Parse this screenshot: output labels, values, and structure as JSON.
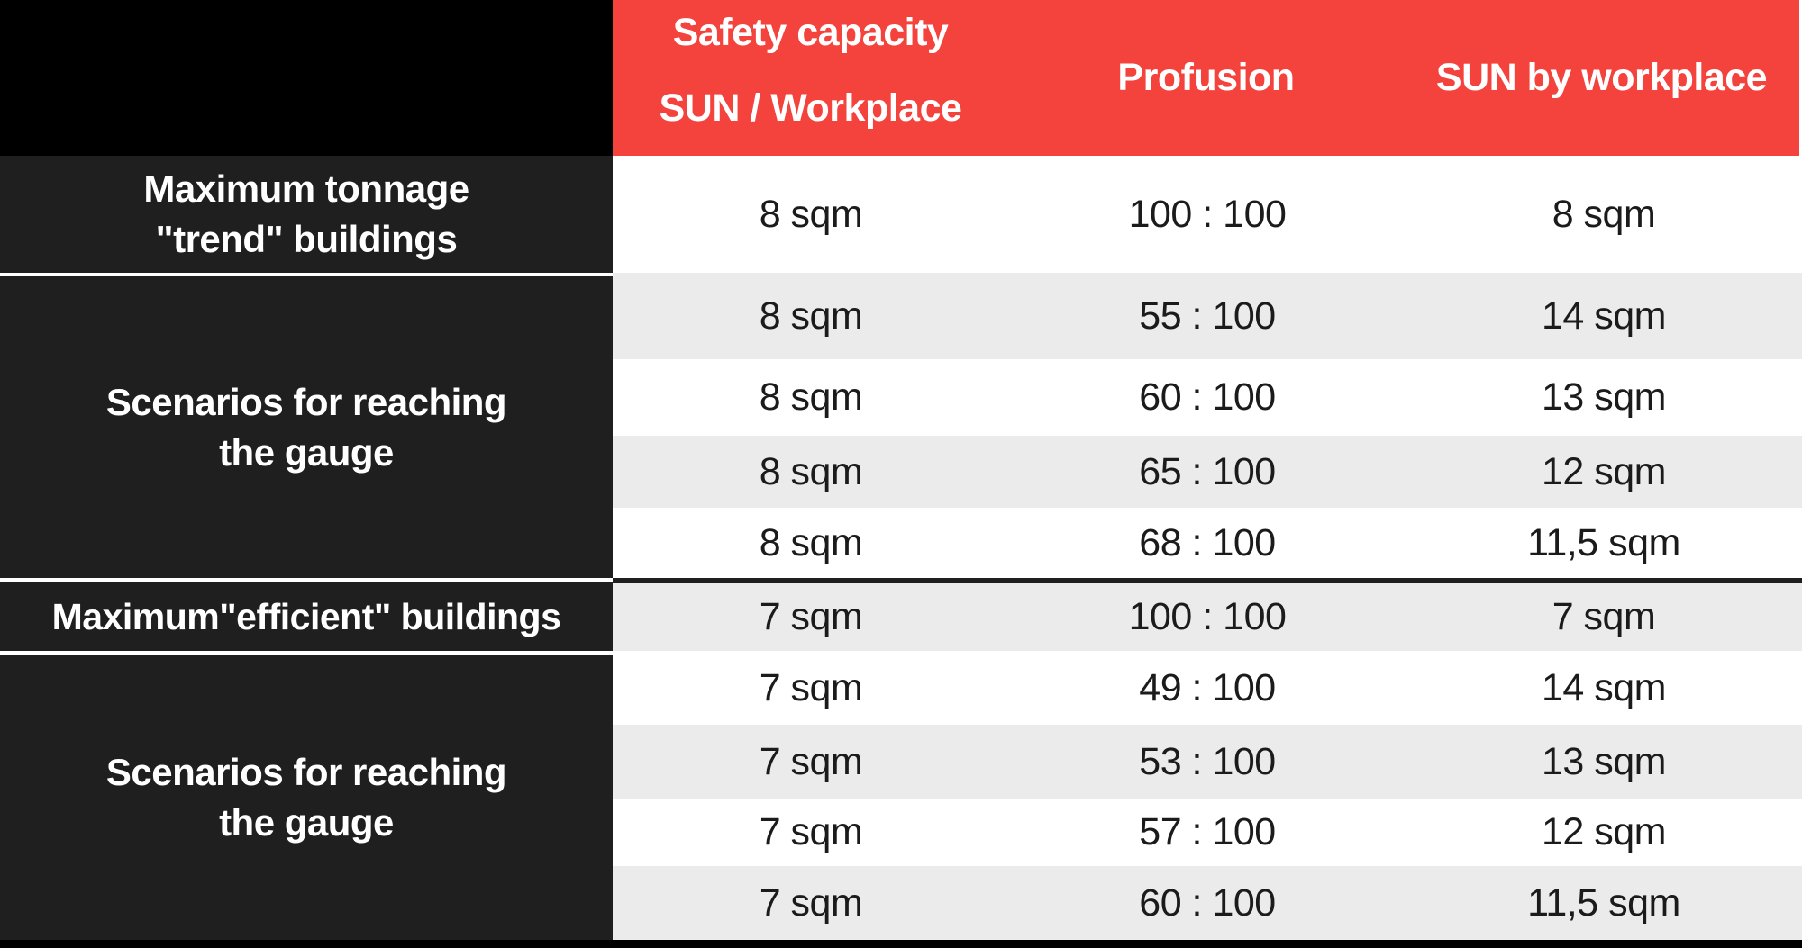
{
  "colors": {
    "header_red": "#F4423C",
    "label_dark": "#1F1F1F",
    "band_gray": "#EBEBEB",
    "band_white": "#FFFFFF",
    "corner_black": "#000000"
  },
  "header": {
    "col1_line1": "Safety capacity",
    "col1_line2": "SUN / Workplace",
    "col2": "Profusion",
    "col3": "SUN by workplace"
  },
  "row_labels": {
    "max_trend": "Maximum tonnage\n\"trend\" buildings",
    "scenarios_1": "Scenarios for reaching\nthe gauge",
    "max_efficient": "Maximum\"efficient\" buildings",
    "scenarios_2": "Scenarios for reaching\nthe gauge"
  },
  "rows": [
    {
      "safety_capacity": "8 sqm",
      "profusion": "100 : 100",
      "sun_by_workplace": "8 sqm"
    },
    {
      "safety_capacity": "8 sqm",
      "profusion": "55 : 100",
      "sun_by_workplace": "14 sqm"
    },
    {
      "safety_capacity": "8 sqm",
      "profusion": "60 : 100",
      "sun_by_workplace": "13 sqm"
    },
    {
      "safety_capacity": "8 sqm",
      "profusion": "65 : 100",
      "sun_by_workplace": "12 sqm"
    },
    {
      "safety_capacity": "8 sqm",
      "profusion": "68 : 100",
      "sun_by_workplace": "11,5 sqm"
    },
    {
      "safety_capacity": "7 sqm",
      "profusion": "100 : 100",
      "sun_by_workplace": "7 sqm"
    },
    {
      "safety_capacity": "7 sqm",
      "profusion": "49 : 100",
      "sun_by_workplace": "14 sqm"
    },
    {
      "safety_capacity": "7 sqm",
      "profusion": "53 : 100",
      "sun_by_workplace": "13 sqm"
    },
    {
      "safety_capacity": "7 sqm",
      "profusion": "57 : 100",
      "sun_by_workplace": "12 sqm"
    },
    {
      "safety_capacity": "7 sqm",
      "profusion": "60 : 100",
      "sun_by_workplace": "11,5 sqm"
    }
  ]
}
